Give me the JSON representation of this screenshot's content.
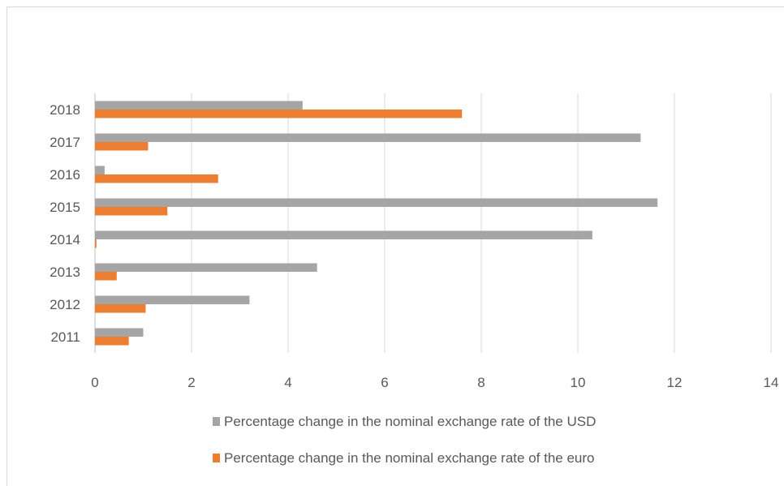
{
  "chart_data": {
    "type": "bar",
    "orientation": "horizontal",
    "categories": [
      "2011",
      "2012",
      "2013",
      "2014",
      "2015",
      "2016",
      "2017",
      "2018"
    ],
    "series": [
      {
        "name": "Percentage change in the nominal exchange rate of the USD",
        "color": "#a5a5a5",
        "values": [
          1.0,
          3.2,
          4.6,
          10.3,
          11.65,
          0.2,
          11.3,
          4.3
        ]
      },
      {
        "name": "Percentage change in the nominal exchange rate of the euro",
        "color": "#ed7d31",
        "values": [
          0.7,
          1.05,
          0.45,
          0.03,
          1.5,
          2.55,
          1.1,
          7.6
        ]
      }
    ],
    "xlim": [
      0,
      14
    ],
    "xticks": [
      "0",
      "2",
      "4",
      "6",
      "8",
      "10",
      "12",
      "14"
    ],
    "grid": true,
    "legend_position": "bottom"
  }
}
